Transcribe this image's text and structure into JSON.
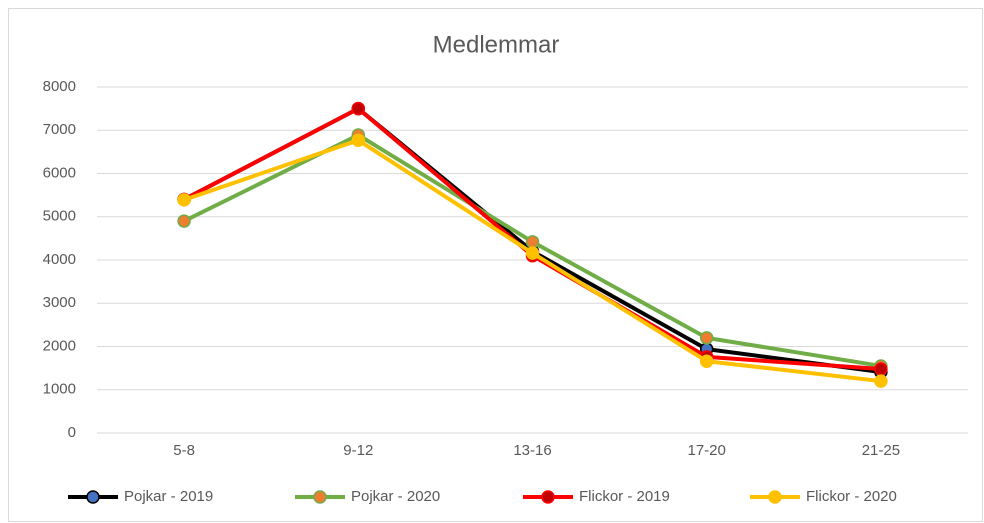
{
  "chart_data": {
    "type": "line",
    "title": "Medlemmar",
    "categories": [
      "5-8",
      "9-12",
      "13-16",
      "17-20",
      "21-25"
    ],
    "series": [
      {
        "name": "Pojkar - 2019",
        "color": "#000000",
        "marker_color": "#4472c4",
        "values": [
          5400,
          7500,
          4200,
          1940,
          1410
        ]
      },
      {
        "name": "Pojkar - 2020",
        "color": "#70ad47",
        "marker_color": "#ed7d31",
        "values": [
          4900,
          6890,
          4420,
          2200,
          1550
        ]
      },
      {
        "name": "Flickor - 2019",
        "color": "#ff0000",
        "marker_color": "#c00000",
        "values": [
          5400,
          7500,
          4100,
          1760,
          1480
        ]
      },
      {
        "name": "Flickor - 2020",
        "color": "#ffc000",
        "marker_color": "#ffc000",
        "values": [
          5390,
          6770,
          4160,
          1660,
          1200
        ]
      }
    ],
    "ylim": [
      0,
      8000
    ],
    "yticks": [
      0,
      1000,
      2000,
      3000,
      4000,
      5000,
      6000,
      7000,
      8000
    ],
    "grid": true,
    "legend": "bottom"
  }
}
